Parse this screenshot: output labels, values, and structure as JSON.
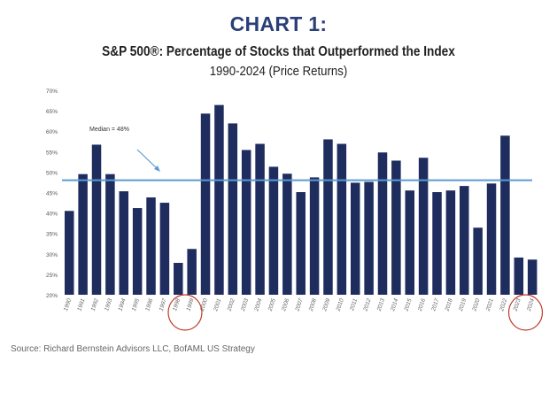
{
  "chart_data": {
    "type": "bar",
    "title": "CHART 1:",
    "subtitle": "S&P 500®:  Percentage of Stocks that Outperformed the Index",
    "subtitle2": "1990-2024 (Price Returns)",
    "xlabel": "",
    "ylabel": "",
    "ylim": [
      20,
      70
    ],
    "yticks": [
      20,
      25,
      30,
      35,
      40,
      45,
      50,
      55,
      60,
      65,
      70
    ],
    "ytick_labels": [
      "20%",
      "25%",
      "30%",
      "35%",
      "40%",
      "45%",
      "50%",
      "55%",
      "60%",
      "65%",
      "70%"
    ],
    "grid": false,
    "categories": [
      "1990",
      "1991",
      "1992",
      "1993",
      "1994",
      "1995",
      "1996",
      "1997",
      "1998",
      "1999",
      "2000",
      "2001",
      "2002",
      "2003",
      "2004",
      "2005",
      "2006",
      "2007",
      "2008",
      "2009",
      "2010",
      "2011",
      "2012",
      "2013",
      "2014",
      "2015",
      "2016",
      "2017",
      "2018",
      "2019",
      "2020",
      "2021",
      "2022",
      "2023",
      "2024"
    ],
    "values": [
      40.5,
      49.5,
      56.7,
      49.5,
      45.3,
      41.2,
      43.8,
      42.5,
      27.8,
      31.2,
      64.3,
      66.4,
      61.9,
      55.4,
      56.9,
      51.3,
      49.6,
      45.1,
      48.7,
      58.0,
      56.9,
      47.4,
      47.6,
      54.8,
      52.8,
      45.5,
      53.5,
      45.1,
      45.5,
      46.6,
      36.4,
      47.2,
      58.9,
      29.1,
      28.6
    ],
    "series_name": "Percentage of Stocks that Outperformed the Index",
    "reference_line": {
      "label": "Median = 48%",
      "value": 48
    },
    "highlighted_categories": [
      [
        "1998",
        "1999"
      ],
      [
        "2023",
        "2024"
      ]
    ],
    "colors": {
      "bar": "#1f2d5e",
      "median_line": "#5b9bd5",
      "highlight_circle": "#c0392b",
      "title": "#2a3f78"
    },
    "legend": "none"
  },
  "footer": {
    "source": "Source: Richard Bernstein Advisors LLC, BofAML US Strategy"
  }
}
